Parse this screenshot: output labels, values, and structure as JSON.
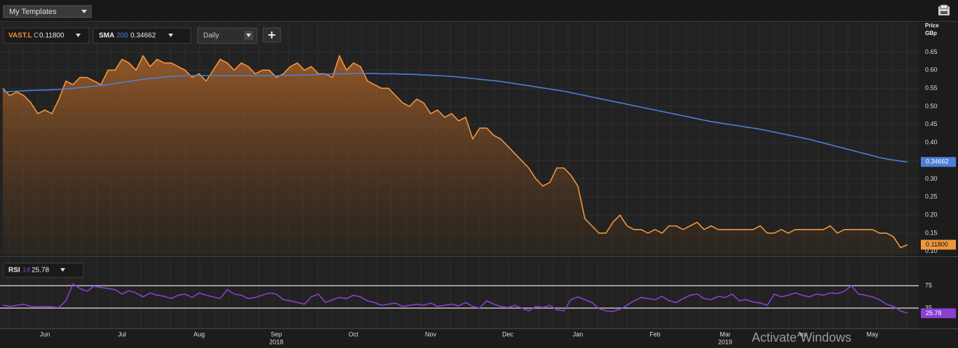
{
  "toolbar": {
    "template_menu": "My Templates",
    "interval": "Daily"
  },
  "watermark": "Activate Windows",
  "chart_data": [
    {
      "type": "line",
      "legend": [
        {
          "symbol": "VAST.L",
          "field": "C",
          "value": "0.11800"
        },
        {
          "symbol": "SMA",
          "period": 200,
          "value": "0.34662"
        }
      ],
      "ylabel": "Price",
      "yunit": "GBp",
      "ylim": [
        0.09,
        0.73
      ],
      "yticks": [
        {
          "value": 0.1,
          "label": "0.10"
        },
        {
          "value": 0.15,
          "label": "0.15"
        },
        {
          "value": 0.2,
          "label": "0.20"
        },
        {
          "value": 0.25,
          "label": "0.25"
        },
        {
          "value": 0.3,
          "label": "0.30"
        },
        {
          "value": 0.35,
          "label": "0.35"
        },
        {
          "value": 0.4,
          "label": "0.40"
        },
        {
          "value": 0.45,
          "label": "0.45"
        },
        {
          "value": 0.5,
          "label": "0.50"
        },
        {
          "value": 0.55,
          "label": "0.55"
        },
        {
          "value": 0.6,
          "label": "0.60"
        },
        {
          "value": 0.65,
          "label": "0.65"
        }
      ],
      "grid": true,
      "series": [
        {
          "name": "VAST.L",
          "color": "#f0963c",
          "area": true,
          "values": [
            0.55,
            0.53,
            0.54,
            0.53,
            0.51,
            0.48,
            0.49,
            0.48,
            0.52,
            0.57,
            0.56,
            0.58,
            0.58,
            0.57,
            0.56,
            0.6,
            0.6,
            0.63,
            0.62,
            0.6,
            0.64,
            0.61,
            0.63,
            0.62,
            0.62,
            0.61,
            0.6,
            0.58,
            0.59,
            0.57,
            0.6,
            0.63,
            0.62,
            0.6,
            0.62,
            0.61,
            0.59,
            0.6,
            0.6,
            0.58,
            0.59,
            0.61,
            0.62,
            0.6,
            0.61,
            0.59,
            0.59,
            0.58,
            0.64,
            0.6,
            0.62,
            0.61,
            0.57,
            0.56,
            0.55,
            0.55,
            0.53,
            0.51,
            0.5,
            0.52,
            0.51,
            0.48,
            0.49,
            0.47,
            0.48,
            0.46,
            0.47,
            0.41,
            0.44,
            0.44,
            0.42,
            0.41,
            0.39,
            0.37,
            0.35,
            0.33,
            0.3,
            0.28,
            0.29,
            0.33,
            0.33,
            0.31,
            0.28,
            0.19,
            0.17,
            0.15,
            0.15,
            0.18,
            0.2,
            0.17,
            0.16,
            0.16,
            0.15,
            0.16,
            0.15,
            0.17,
            0.17,
            0.16,
            0.17,
            0.18,
            0.16,
            0.17,
            0.16,
            0.16,
            0.16,
            0.16,
            0.16,
            0.16,
            0.17,
            0.15,
            0.15,
            0.16,
            0.15,
            0.16,
            0.16,
            0.16,
            0.16,
            0.16,
            0.17,
            0.15,
            0.16,
            0.16,
            0.16,
            0.16,
            0.16,
            0.15,
            0.15,
            0.14,
            0.11,
            0.118
          ]
        },
        {
          "name": "SMA",
          "color": "#4d7fd8",
          "values": [
            0.54,
            0.541,
            0.542,
            0.543,
            0.544,
            0.545,
            0.545,
            0.546,
            0.547,
            0.548,
            0.55,
            0.552,
            0.554,
            0.556,
            0.558,
            0.56,
            0.563,
            0.566,
            0.569,
            0.572,
            0.575,
            0.577,
            0.579,
            0.581,
            0.583,
            0.584,
            0.585,
            0.585,
            0.585,
            0.585,
            0.585,
            0.585,
            0.585,
            0.585,
            0.585,
            0.585,
            0.585,
            0.585,
            0.585,
            0.585,
            0.585,
            0.586,
            0.586,
            0.587,
            0.587,
            0.588,
            0.589,
            0.59,
            0.59,
            0.59,
            0.591,
            0.591,
            0.591,
            0.591,
            0.59,
            0.59,
            0.59,
            0.589,
            0.589,
            0.588,
            0.587,
            0.586,
            0.585,
            0.584,
            0.583,
            0.581,
            0.579,
            0.577,
            0.575,
            0.573,
            0.571,
            0.569,
            0.566,
            0.563,
            0.56,
            0.557,
            0.554,
            0.551,
            0.548,
            0.545,
            0.542,
            0.538,
            0.534,
            0.53,
            0.526,
            0.522,
            0.518,
            0.514,
            0.51,
            0.506,
            0.502,
            0.498,
            0.494,
            0.49,
            0.486,
            0.482,
            0.478,
            0.474,
            0.47,
            0.466,
            0.462,
            0.458,
            0.455,
            0.452,
            0.449,
            0.446,
            0.443,
            0.44,
            0.437,
            0.433,
            0.429,
            0.425,
            0.421,
            0.417,
            0.413,
            0.409,
            0.404,
            0.399,
            0.394,
            0.389,
            0.384,
            0.379,
            0.374,
            0.369,
            0.364,
            0.359,
            0.355,
            0.352,
            0.349,
            0.34662
          ]
        }
      ]
    },
    {
      "type": "line",
      "legend": [
        {
          "symbol": "RSI",
          "period": 14,
          "value": "25.78"
        }
      ],
      "ylim": [
        0,
        125
      ],
      "yticks": [
        75,
        35
      ],
      "categories": [
        null,
        null,
        null,
        null,
        null,
        null,
        "Jun",
        null,
        null,
        null,
        null,
        null,
        null,
        null,
        null,
        null,
        null,
        "Jul",
        null,
        null,
        null,
        null,
        null,
        null,
        null,
        null,
        null,
        null,
        "Aug",
        null,
        null,
        null,
        null,
        null,
        null,
        null,
        null,
        null,
        null,
        "Sep",
        null,
        null,
        null,
        null,
        null,
        null,
        null,
        null,
        null,
        null,
        "Oct",
        null,
        null,
        null,
        null,
        null,
        null,
        null,
        null,
        null,
        null,
        "Nov",
        null,
        null,
        null,
        null,
        null,
        null,
        null,
        null,
        null,
        null,
        "Dec",
        null,
        null,
        null,
        null,
        null,
        null,
        null,
        null,
        null,
        "Jan",
        null,
        null,
        null,
        null,
        null,
        null,
        null,
        null,
        null,
        null,
        "Feb",
        null,
        null,
        null,
        null,
        null,
        null,
        null,
        null,
        null,
        "Mar",
        null,
        null,
        null,
        null,
        null,
        null,
        null,
        null,
        null,
        null,
        "Apr",
        null,
        null,
        null,
        null,
        null,
        null,
        null,
        null,
        null,
        "May",
        null,
        null,
        null,
        null,
        null
      ],
      "year_labels": [
        {
          "value": 39,
          "label": "2018"
        },
        {
          "value": 103,
          "label": "2019"
        }
      ],
      "series": [
        {
          "name": "RSI",
          "color": "#8a3fd1",
          "values": [
            40,
            38,
            40,
            42,
            38,
            37,
            38,
            37,
            36,
            48,
            78,
            70,
            65,
            74,
            72,
            70,
            68,
            60,
            66,
            62,
            55,
            62,
            58,
            56,
            52,
            58,
            60,
            54,
            62,
            58,
            55,
            52,
            68,
            60,
            58,
            52,
            54,
            58,
            62,
            60,
            50,
            48,
            45,
            42,
            55,
            60,
            45,
            50,
            54,
            52,
            58,
            55,
            48,
            45,
            40,
            42,
            44,
            38,
            40,
            42,
            40,
            44,
            38,
            40,
            42,
            39,
            45,
            38,
            35,
            48,
            42,
            38,
            36,
            40,
            35,
            30,
            38,
            36,
            40,
            32,
            30,
            50,
            55,
            50,
            45,
            34,
            30,
            29,
            33,
            40,
            48,
            54,
            52,
            50,
            56,
            48,
            45,
            52,
            58,
            60,
            52,
            50,
            56,
            54,
            60,
            48,
            50,
            46,
            44,
            40,
            60,
            55,
            58,
            62,
            58,
            55,
            60,
            58,
            62,
            61,
            65,
            75,
            60,
            58,
            55,
            50,
            42,
            38,
            30,
            25.78
          ]
        }
      ]
    }
  ]
}
